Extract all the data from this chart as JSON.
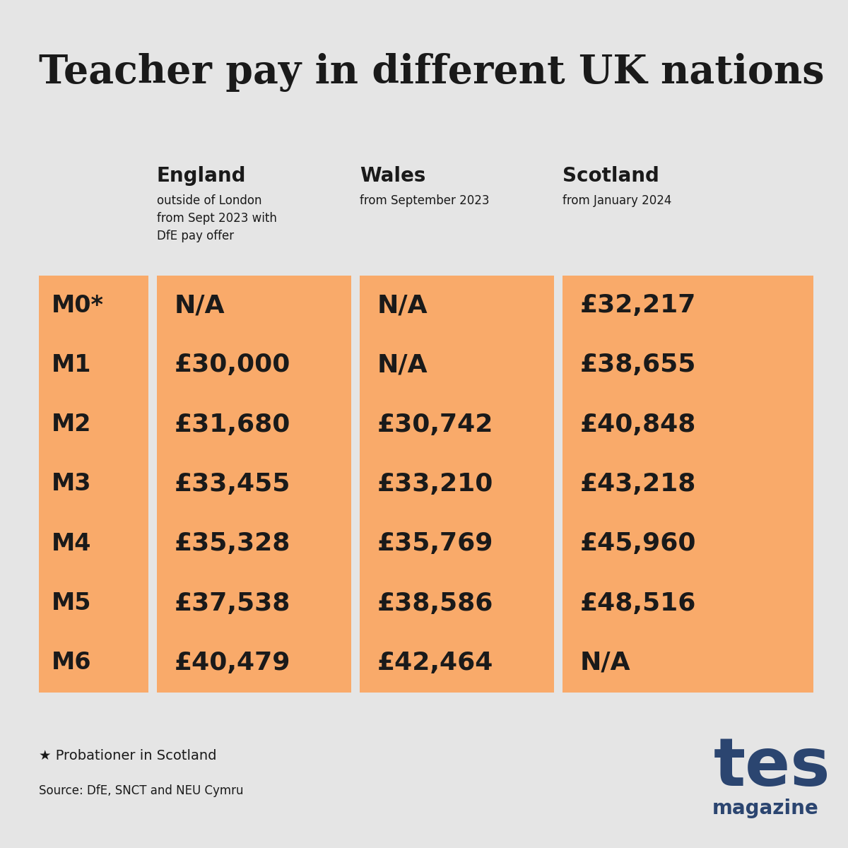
{
  "title": "Teacher pay in different UK nations",
  "background_color": "#e5e5e5",
  "orange_color": "#f9aa6a",
  "text_dark": "#1a1a1a",
  "tes_color": "#2b4570",
  "columns": [
    "England",
    "Wales",
    "Scotland"
  ],
  "col_subtitles": [
    "outside of London\nfrom Sept 2023 with\nDfE pay offer",
    "from September 2023",
    "from January 2024"
  ],
  "rows": [
    "M0*",
    "M1",
    "M2",
    "M3",
    "M4",
    "M5",
    "M6"
  ],
  "england": [
    "N/A",
    "£30,000",
    "£31,680",
    "£33,455",
    "£35,328",
    "£37,538",
    "£40,479"
  ],
  "wales": [
    "N/A",
    "N/A",
    "£30,742",
    "£33,210",
    "£35,769",
    "£38,586",
    "£42,464"
  ],
  "scotland": [
    "£32,217",
    "£38,655",
    "£40,848",
    "£43,218",
    "£45,960",
    "£48,516",
    "N/A"
  ],
  "footnote": "★ Probationer in Scotland",
  "source": "Source: DfE, SNCT and NEU Cymru",
  "fig_width": 12,
  "fig_height": 12,
  "dpi": 100
}
